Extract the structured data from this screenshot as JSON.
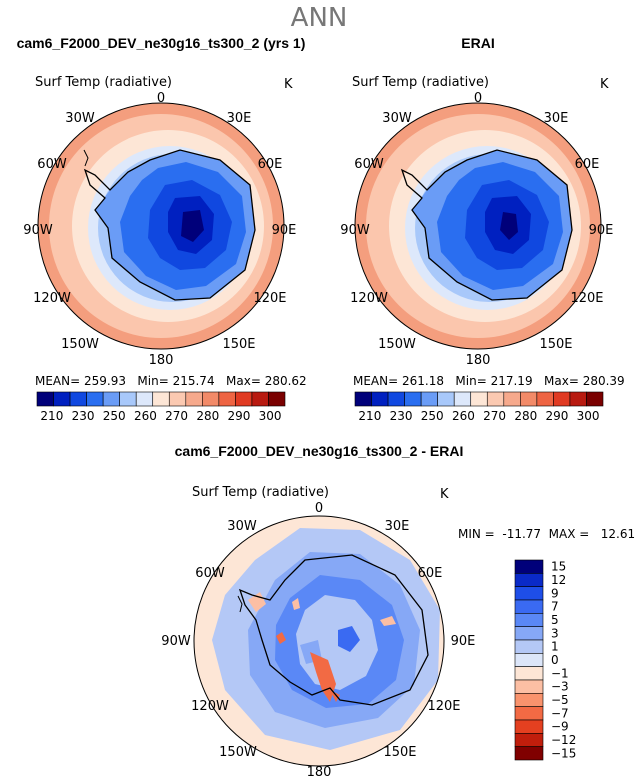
{
  "figure": {
    "season": "ANN",
    "diff_title": "cam6_F2000_DEV_ne30g16_ts300_2 - ERAI"
  },
  "colors": {
    "abs_scale": [
      "#00007a",
      "#0020c0",
      "#1048e0",
      "#2a6ef0",
      "#6a9cf6",
      "#a8c8fa",
      "#dde8fb",
      "#fde6d6",
      "#fbc9b1",
      "#f6a98c",
      "#f28a68",
      "#ee6443",
      "#e03a22",
      "#b81a10",
      "#7a0000"
    ],
    "diff_scale": [
      "#00007a",
      "#0a2ac8",
      "#1e4ee8",
      "#3a6af2",
      "#5a88f6",
      "#86a8f6",
      "#b4c8f6",
      "#dce6f9",
      "#fde6d6",
      "#fcbfa4",
      "#f9936d",
      "#f26a44",
      "#e44020",
      "#c01e0c",
      "#800000"
    ]
  },
  "chart_data": [
    {
      "type": "polar-contour-map",
      "title": "cam6_F2000_DEV_ne30g16_ts300_2 (yrs 1)",
      "variable": "Surf Temp (radiative)",
      "units": "K",
      "lon_labels": [
        "0",
        "30E",
        "60E",
        "90E",
        "120E",
        "150E",
        "180",
        "150W",
        "120W",
        "90W",
        "60W",
        "30W"
      ],
      "stats": {
        "mean": "259.93",
        "min": "215.74",
        "max": "280.62"
      },
      "stats_text": "MEAN= 259.93   Min= 215.74   Max= 280.62",
      "levels": [
        210,
        215,
        220,
        225,
        230,
        235,
        240,
        245,
        250,
        255,
        260,
        265,
        270,
        275,
        280,
        285,
        290,
        295,
        300
      ],
      "level_labels": [
        "210",
        "230",
        "250",
        "260",
        "270",
        "280",
        "290",
        "300"
      ]
    },
    {
      "type": "polar-contour-map",
      "title": "ERAI",
      "variable": "Surf Temp (radiative)",
      "units": "K",
      "lon_labels": [
        "0",
        "30E",
        "60E",
        "90E",
        "120E",
        "150E",
        "180",
        "150W",
        "120W",
        "90W",
        "60W",
        "30W"
      ],
      "stats": {
        "mean": "261.18",
        "min": "217.19",
        "max": "280.39"
      },
      "stats_text": "MEAN= 261.18   Min= 217.19   Max= 280.39",
      "levels": [
        210,
        215,
        220,
        225,
        230,
        235,
        240,
        245,
        250,
        255,
        260,
        265,
        270,
        275,
        280,
        285,
        290,
        295,
        300
      ],
      "level_labels": [
        "210",
        "230",
        "250",
        "260",
        "270",
        "280",
        "290",
        "300"
      ]
    },
    {
      "type": "polar-contour-map",
      "title": "cam6_F2000_DEV_ne30g16_ts300_2 - ERAI",
      "variable": "Surf Temp (radiative)",
      "units": "K",
      "lon_labels": [
        "0",
        "30E",
        "60E",
        "90E",
        "120E",
        "150E",
        "180",
        "150W",
        "120W",
        "90W",
        "60W",
        "30W"
      ],
      "stats": {
        "min": "-11.77",
        "max": "12.61"
      },
      "stats_text": "MIN =  -11.77  MAX =   12.61",
      "levels": [
        15,
        12,
        9,
        7,
        5,
        3,
        1,
        0,
        -1,
        -3,
        -5,
        -7,
        -9,
        -12,
        -15
      ],
      "level_labels": [
        "15",
        "12",
        "9",
        "7",
        "5",
        "3",
        "1",
        "0",
        "−1",
        "−3",
        "−5",
        "−7",
        "−9",
        "−12",
        "−15"
      ]
    }
  ]
}
